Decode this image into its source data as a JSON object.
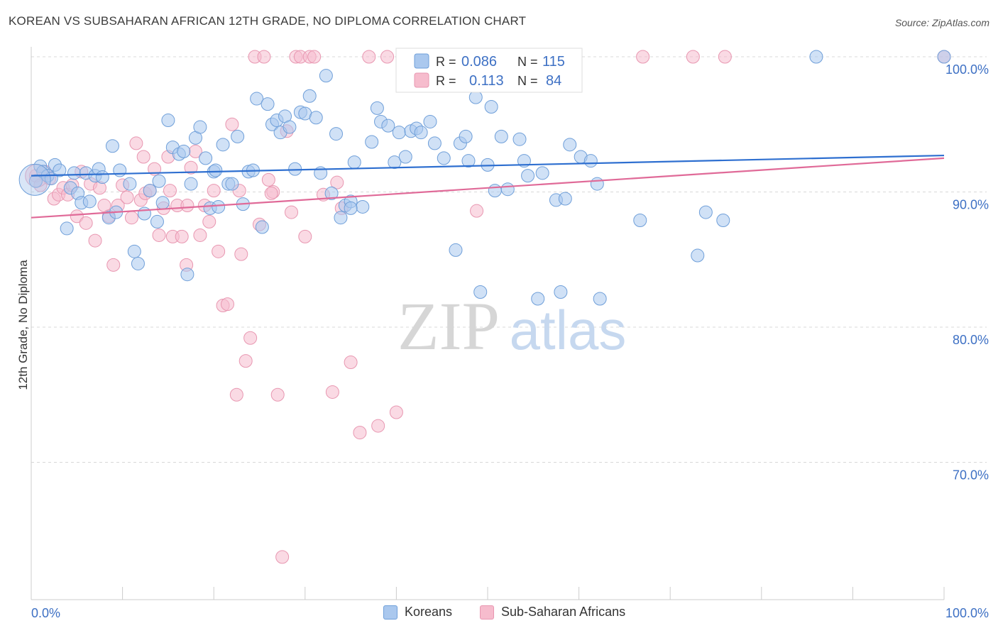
{
  "title": "KOREAN VS SUBSAHARAN AFRICAN 12TH GRADE, NO DIPLOMA CORRELATION CHART",
  "source": "Source: ZipAtlas.com",
  "watermark": {
    "zip": "ZIP",
    "atlas": "atlas"
  },
  "colors": {
    "blue_fill": "#aac8ee",
    "blue_stroke": "#6f9fd9",
    "blue_line": "#2e6fd0",
    "pink_fill": "#f6bccd",
    "pink_stroke": "#e897b1",
    "pink_line": "#e06a98",
    "tick_label": "#3d70c4",
    "grid": "#d8d8d8"
  },
  "legend": {
    "rows": [
      {
        "r_label": "R =",
        "r_value": "0.086",
        "n_label": "N =",
        "n_value": "115"
      },
      {
        "r_label": "R =",
        "r_value": "0.113",
        "n_label": "N =",
        "n_value": "84"
      }
    ]
  },
  "bottom_legend": {
    "koreans": "Koreans",
    "africans": "Sub-Saharan Africans"
  },
  "chart_data": {
    "type": "scatter",
    "title": "KOREAN VS SUBSAHARAN AFRICAN 12TH GRADE, NO DIPLOMA CORRELATION CHART",
    "xlabel": "",
    "ylabel": "12th Grade, No Diploma",
    "xlim": [
      0,
      100
    ],
    "ylim": [
      61.5,
      101.5
    ],
    "x_tick_labels": [
      "0.0%",
      "100.0%"
    ],
    "y_ticks": [
      70,
      80,
      90,
      100
    ],
    "y_tick_labels": [
      "70.0%",
      "80.0%",
      "90.0%",
      "100.0%"
    ],
    "grid": true,
    "legend_position": "top-center",
    "series": [
      {
        "name": "Koreans",
        "r": 0.086,
        "n": 115,
        "trend": {
          "x": [
            0,
            100
          ],
          "y": [
            91.2,
            92.7
          ]
        },
        "points": [
          [
            0.5,
            90.8
          ],
          [
            1,
            91.9
          ],
          [
            1.3,
            91.5
          ],
          [
            1.8,
            91.2
          ],
          [
            2.2,
            91.0
          ],
          [
            2.6,
            92.0
          ],
          [
            3.1,
            91.6
          ],
          [
            3.9,
            87.3
          ],
          [
            4.3,
            90.3
          ],
          [
            4.7,
            91.4
          ],
          [
            5.1,
            89.9
          ],
          [
            5.5,
            89.2
          ],
          [
            6.0,
            91.4
          ],
          [
            6.4,
            89.3
          ],
          [
            7.0,
            91.2
          ],
          [
            7.4,
            91.7
          ],
          [
            7.8,
            91.1
          ],
          [
            8.5,
            88.1
          ],
          [
            8.9,
            93.4
          ],
          [
            9.3,
            88.5
          ],
          [
            9.7,
            91.6
          ],
          [
            10.8,
            90.6
          ],
          [
            11.3,
            85.6
          ],
          [
            11.7,
            84.7
          ],
          [
            12.4,
            88.4
          ],
          [
            13.0,
            90.1
          ],
          [
            13.8,
            87.8
          ],
          [
            14.4,
            89.2
          ],
          [
            15.0,
            95.3
          ],
          [
            15.5,
            93.3
          ],
          [
            16.2,
            92.8
          ],
          [
            16.7,
            93.0
          ],
          [
            17.1,
            83.9
          ],
          [
            17.5,
            90.6
          ],
          [
            18.0,
            94.0
          ],
          [
            18.5,
            94.8
          ],
          [
            19.1,
            92.5
          ],
          [
            19.6,
            88.8
          ],
          [
            20.0,
            91.5
          ],
          [
            20.5,
            88.9
          ],
          [
            21.0,
            93.5
          ],
          [
            21.6,
            90.6
          ],
          [
            22.0,
            90.6
          ],
          [
            22.6,
            94.1
          ],
          [
            23.2,
            89.1
          ],
          [
            23.8,
            91.5
          ],
          [
            24.3,
            91.6
          ],
          [
            24.7,
            96.9
          ],
          [
            25.3,
            87.4
          ],
          [
            25.9,
            96.5
          ],
          [
            26.4,
            95.0
          ],
          [
            26.9,
            95.3
          ],
          [
            27.3,
            94.4
          ],
          [
            27.8,
            95.6
          ],
          [
            28.3,
            94.8
          ],
          [
            28.9,
            91.7
          ],
          [
            29.5,
            95.9
          ],
          [
            30.0,
            95.8
          ],
          [
            30.5,
            97.1
          ],
          [
            31.2,
            95.5
          ],
          [
            31.7,
            91.4
          ],
          [
            32.3,
            98.6
          ],
          [
            32.9,
            89.9
          ],
          [
            33.4,
            94.3
          ],
          [
            33.9,
            88.1
          ],
          [
            34.4,
            89.0
          ],
          [
            35.0,
            89.3
          ],
          [
            35.4,
            92.2
          ],
          [
            36.3,
            88.9
          ],
          [
            37.3,
            93.7
          ],
          [
            37.9,
            96.2
          ],
          [
            38.3,
            95.2
          ],
          [
            39.1,
            94.9
          ],
          [
            39.8,
            92.2
          ],
          [
            40.3,
            94.4
          ],
          [
            41.0,
            92.6
          ],
          [
            41.6,
            94.5
          ],
          [
            42.2,
            94.7
          ],
          [
            42.7,
            94.4
          ],
          [
            43.7,
            95.2
          ],
          [
            44.2,
            93.6
          ],
          [
            45.2,
            92.5
          ],
          [
            46.5,
            85.7
          ],
          [
            47.0,
            93.6
          ],
          [
            47.6,
            94.1
          ],
          [
            47.9,
            92.3
          ],
          [
            48.7,
            97.0
          ],
          [
            49.2,
            82.6
          ],
          [
            50.0,
            92.0
          ],
          [
            50.4,
            96.3
          ],
          [
            50.8,
            90.1
          ],
          [
            51.5,
            94.1
          ],
          [
            52.2,
            90.2
          ],
          [
            53.5,
            93.9
          ],
          [
            54.0,
            92.3
          ],
          [
            54.4,
            91.2
          ],
          [
            55.5,
            82.1
          ],
          [
            56.0,
            91.4
          ],
          [
            57.5,
            89.4
          ],
          [
            58.0,
            82.6
          ],
          [
            58.5,
            89.5
          ],
          [
            59.0,
            93.5
          ],
          [
            60.2,
            92.6
          ],
          [
            61.3,
            92.3
          ],
          [
            62.0,
            90.6
          ],
          [
            62.3,
            82.1
          ],
          [
            66.7,
            87.9
          ],
          [
            73.0,
            85.3
          ],
          [
            73.9,
            88.5
          ],
          [
            75.8,
            87.9
          ],
          [
            86.0,
            100
          ],
          [
            100,
            100
          ],
          [
            20.2,
            91.6
          ],
          [
            14.0,
            90.8
          ],
          [
            35.0,
            88.8
          ]
        ]
      },
      {
        "name": "Sub-Saharan Africans",
        "r": 0.113,
        "n": 84,
        "trend": {
          "x": [
            0,
            100
          ],
          "y": [
            88.1,
            92.5
          ]
        },
        "points": [
          [
            0.5,
            91.2
          ],
          [
            1.0,
            90.5
          ],
          [
            1.5,
            91.5
          ],
          [
            2.0,
            91.0
          ],
          [
            2.5,
            89.5
          ],
          [
            3.0,
            89.8
          ],
          [
            3.5,
            90.3
          ],
          [
            4.0,
            89.8
          ],
          [
            4.5,
            90.5
          ],
          [
            5.0,
            88.2
          ],
          [
            5.5,
            91.5
          ],
          [
            6.0,
            87.7
          ],
          [
            6.5,
            90.6
          ],
          [
            7.0,
            86.4
          ],
          [
            7.5,
            90.3
          ],
          [
            8.0,
            89.0
          ],
          [
            8.5,
            88.2
          ],
          [
            9.0,
            84.6
          ],
          [
            9.5,
            89.0
          ],
          [
            10.0,
            90.5
          ],
          [
            10.5,
            89.6
          ],
          [
            11.0,
            88.1
          ],
          [
            11.5,
            93.6
          ],
          [
            12.0,
            89.4
          ],
          [
            12.5,
            89.9
          ],
          [
            13.0,
            90.1
          ],
          [
            13.5,
            91.7
          ],
          [
            14.0,
            86.8
          ],
          [
            14.5,
            88.8
          ],
          [
            15.0,
            92.6
          ],
          [
            15.5,
            86.7
          ],
          [
            16.0,
            89.0
          ],
          [
            16.5,
            86.7
          ],
          [
            17.0,
            84.6
          ],
          [
            17.5,
            91.8
          ],
          [
            18.0,
            93.0
          ],
          [
            18.5,
            86.8
          ],
          [
            19.0,
            89.0
          ],
          [
            19.5,
            87.8
          ],
          [
            20.0,
            90.1
          ],
          [
            20.5,
            85.6
          ],
          [
            21.0,
            81.6
          ],
          [
            21.5,
            81.7
          ],
          [
            22.0,
            95.0
          ],
          [
            22.5,
            75.0
          ],
          [
            23.0,
            85.4
          ],
          [
            23.5,
            77.5
          ],
          [
            24.0,
            79.2
          ],
          [
            24.5,
            100
          ],
          [
            25.0,
            87.6
          ],
          [
            25.5,
            100
          ],
          [
            26.0,
            90.9
          ],
          [
            26.5,
            90.0
          ],
          [
            27.0,
            75.0
          ],
          [
            27.5,
            63.0
          ],
          [
            28.0,
            94.5
          ],
          [
            28.5,
            88.5
          ],
          [
            29.0,
            100
          ],
          [
            29.5,
            100
          ],
          [
            30.0,
            86.7
          ],
          [
            30.5,
            100
          ],
          [
            31.0,
            100
          ],
          [
            32.0,
            89.8
          ],
          [
            33.0,
            75.2
          ],
          [
            33.5,
            90.7
          ],
          [
            34.0,
            88.8
          ],
          [
            35.0,
            77.4
          ],
          [
            36.0,
            72.2
          ],
          [
            37.0,
            100
          ],
          [
            38.0,
            72.7
          ],
          [
            39.0,
            100
          ],
          [
            40.0,
            73.7
          ],
          [
            41.0,
            100
          ],
          [
            42.0,
            100
          ],
          [
            67.0,
            100
          ],
          [
            72.5,
            100
          ],
          [
            76.0,
            100
          ],
          [
            100,
            100
          ],
          [
            15.2,
            90.1
          ],
          [
            12.3,
            92.6
          ],
          [
            17.1,
            89.0
          ],
          [
            26.3,
            89.9
          ],
          [
            22.8,
            90.1
          ],
          [
            48.8,
            88.6
          ]
        ]
      }
    ]
  }
}
